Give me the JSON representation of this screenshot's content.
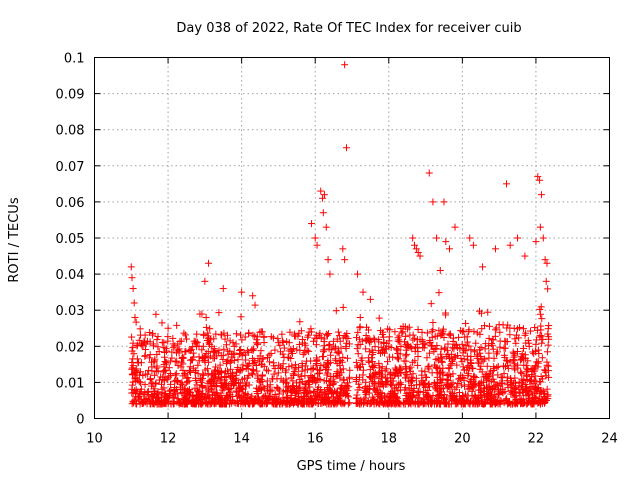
{
  "chart_data": {
    "type": "scatter",
    "title": "Day 038 of 2022, Rate Of TEC Index for receiver cuib",
    "xlabel": "GPS time / hours",
    "ylabel": "ROTI / TECUs",
    "xlim": [
      10,
      24
    ],
    "ylim": [
      0,
      0.1
    ],
    "x_ticks": [
      10,
      12,
      14,
      16,
      18,
      20,
      22,
      24
    ],
    "x_tick_labels": [
      "10",
      "12",
      "14",
      "16",
      "18",
      "20",
      "22",
      "24"
    ],
    "y_ticks": [
      0,
      0.01,
      0.02,
      0.03,
      0.04,
      0.05,
      0.06,
      0.07,
      0.08,
      0.09,
      0.1
    ],
    "y_tick_labels": [
      "0",
      "0.01",
      "0.02",
      "0.03",
      "0.04",
      "0.05",
      "0.06",
      "0.07",
      "0.08",
      "0.09",
      "0.1"
    ],
    "grid": true,
    "marker": "+",
    "color": "#ff0000",
    "series": [
      {
        "name": "ROTI",
        "points": [
          [
            11.0,
            0.042
          ],
          [
            11.02,
            0.039
          ],
          [
            11.05,
            0.036
          ],
          [
            11.08,
            0.032
          ],
          [
            11.1,
            0.028
          ],
          [
            16.15,
            0.063
          ],
          [
            16.2,
            0.061
          ],
          [
            16.25,
            0.062
          ],
          [
            16.22,
            0.057
          ],
          [
            16.3,
            0.053
          ],
          [
            15.9,
            0.054
          ],
          [
            16.0,
            0.05
          ],
          [
            16.05,
            0.048
          ],
          [
            16.35,
            0.044
          ],
          [
            16.4,
            0.04
          ],
          [
            16.8,
            0.098
          ],
          [
            16.85,
            0.075
          ],
          [
            16.75,
            0.047
          ],
          [
            16.8,
            0.044
          ],
          [
            13.1,
            0.043
          ],
          [
            13.0,
            0.038
          ],
          [
            13.5,
            0.036
          ],
          [
            14.0,
            0.035
          ],
          [
            14.3,
            0.034
          ],
          [
            17.15,
            0.04
          ],
          [
            17.3,
            0.035
          ],
          [
            17.5,
            0.033
          ],
          [
            18.65,
            0.05
          ],
          [
            18.7,
            0.048
          ],
          [
            18.75,
            0.047
          ],
          [
            18.8,
            0.046
          ],
          [
            18.85,
            0.045
          ],
          [
            19.1,
            0.068
          ],
          [
            19.2,
            0.06
          ],
          [
            19.5,
            0.06
          ],
          [
            19.3,
            0.05
          ],
          [
            19.55,
            0.049
          ],
          [
            19.8,
            0.053
          ],
          [
            19.4,
            0.041
          ],
          [
            19.65,
            0.047
          ],
          [
            20.2,
            0.05
          ],
          [
            20.3,
            0.048
          ],
          [
            20.55,
            0.042
          ],
          [
            20.9,
            0.047
          ],
          [
            21.2,
            0.065
          ],
          [
            21.5,
            0.05
          ],
          [
            21.3,
            0.048
          ],
          [
            21.7,
            0.045
          ],
          [
            22.05,
            0.067
          ],
          [
            22.1,
            0.066
          ],
          [
            22.15,
            0.062
          ],
          [
            22.12,
            0.053
          ],
          [
            22.0,
            0.049
          ],
          [
            22.2,
            0.05
          ],
          [
            22.25,
            0.044
          ],
          [
            22.3,
            0.043
          ],
          [
            22.28,
            0.038
          ],
          [
            12.0,
            0.025
          ],
          [
            12.5,
            0.022
          ],
          [
            15.0,
            0.021
          ],
          [
            15.5,
            0.019
          ],
          [
            20.0,
            0.024
          ],
          [
            21.0,
            0.026
          ],
          [
            18.0,
            0.02
          ],
          [
            16.6,
            0.022
          ],
          [
            14.8,
            0.018
          ],
          [
            13.8,
            0.02
          ]
        ]
      }
    ]
  }
}
